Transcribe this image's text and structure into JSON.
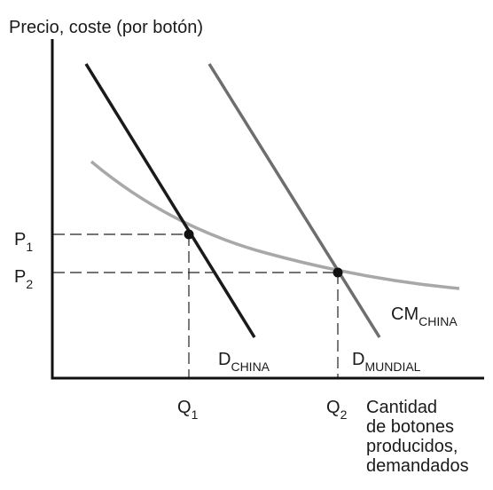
{
  "diagram": {
    "y_axis_label": "Precio, coste (por botón)",
    "x_axis_label_lines": [
      "Cantidad",
      "de botones",
      "producidos,",
      "demandados"
    ],
    "price_labels": [
      {
        "main": "P",
        "sub": "1"
      },
      {
        "main": "P",
        "sub": "2"
      }
    ],
    "quantity_labels": [
      {
        "main": "Q",
        "sub": "1"
      },
      {
        "main": "Q",
        "sub": "2"
      }
    ],
    "curves": {
      "demand_china": {
        "main": "D",
        "sub": "CHINA"
      },
      "demand_world": {
        "main": "D",
        "sub": "MUNDIAL"
      },
      "average_cost_china": {
        "main": "CM",
        "sub": "CHINA"
      }
    },
    "colors": {
      "axes": "#111111",
      "demand_china": "#1a1a1a",
      "demand_world": "#6e6e6e",
      "average_cost": "#a8a8a8",
      "guides": "#222222"
    }
  }
}
